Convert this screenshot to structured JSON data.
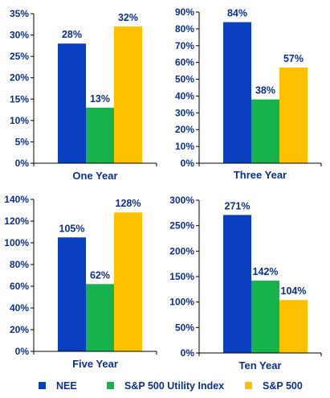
{
  "colors": {
    "NEE": "#0a3fbf",
    "utility": "#16b24b",
    "sp500": "#ffc000",
    "text": "#0b2f8c",
    "axis": "#000000"
  },
  "legend": {
    "position": "bottom",
    "items": [
      {
        "name": "NEE",
        "color_key": "NEE"
      },
      {
        "name": "S&P 500 Utility Index",
        "color_key": "utility"
      },
      {
        "name": "S&P 500",
        "color_key": "sp500"
      }
    ]
  },
  "chart_data": [
    {
      "type": "bar",
      "title": "One Year",
      "series_names": [
        "NEE",
        "S&P 500 Utility Index",
        "S&P 500"
      ],
      "values": [
        28,
        13,
        32
      ],
      "value_labels": [
        "28%",
        "13%",
        "32%"
      ],
      "ylim": [
        0,
        35
      ],
      "yticks": [
        0,
        5,
        10,
        15,
        20,
        25,
        30,
        35
      ],
      "ytick_labels": [
        "0%",
        "5%",
        "10%",
        "15%",
        "20%",
        "25%",
        "30%",
        "35%"
      ]
    },
    {
      "type": "bar",
      "title": "Three Year",
      "series_names": [
        "NEE",
        "S&P 500 Utility Index",
        "S&P 500"
      ],
      "values": [
        84,
        38,
        57
      ],
      "value_labels": [
        "84%",
        "38%",
        "57%"
      ],
      "ylim": [
        0,
        90
      ],
      "yticks": [
        0,
        10,
        20,
        30,
        40,
        50,
        60,
        70,
        80,
        90
      ],
      "ytick_labels": [
        "0%",
        "10%",
        "20%",
        "30%",
        "40%",
        "50%",
        "60%",
        "70%",
        "80%",
        "90%"
      ]
    },
    {
      "type": "bar",
      "title": "Five Year",
      "series_names": [
        "NEE",
        "S&P 500 Utility Index",
        "S&P 500"
      ],
      "values": [
        105,
        62,
        128
      ],
      "value_labels": [
        "105%",
        "62%",
        "128%"
      ],
      "ylim": [
        0,
        140
      ],
      "yticks": [
        0,
        20,
        40,
        60,
        80,
        100,
        120,
        140
      ],
      "ytick_labels": [
        "0%",
        "20%",
        "40%",
        "60%",
        "80%",
        "100%",
        "120%",
        "140%"
      ]
    },
    {
      "type": "bar",
      "title": "Ten Year",
      "series_names": [
        "NEE",
        "S&P 500 Utility Index",
        "S&P 500"
      ],
      "values": [
        271,
        142,
        104
      ],
      "value_labels": [
        "271%",
        "142%",
        "104%"
      ],
      "ylim": [
        0,
        300
      ],
      "yticks": [
        0,
        50,
        100,
        150,
        200,
        250,
        300
      ],
      "ytick_labels": [
        "0%",
        "50%",
        "100%",
        "150%",
        "200%",
        "250%",
        "300%"
      ]
    }
  ]
}
